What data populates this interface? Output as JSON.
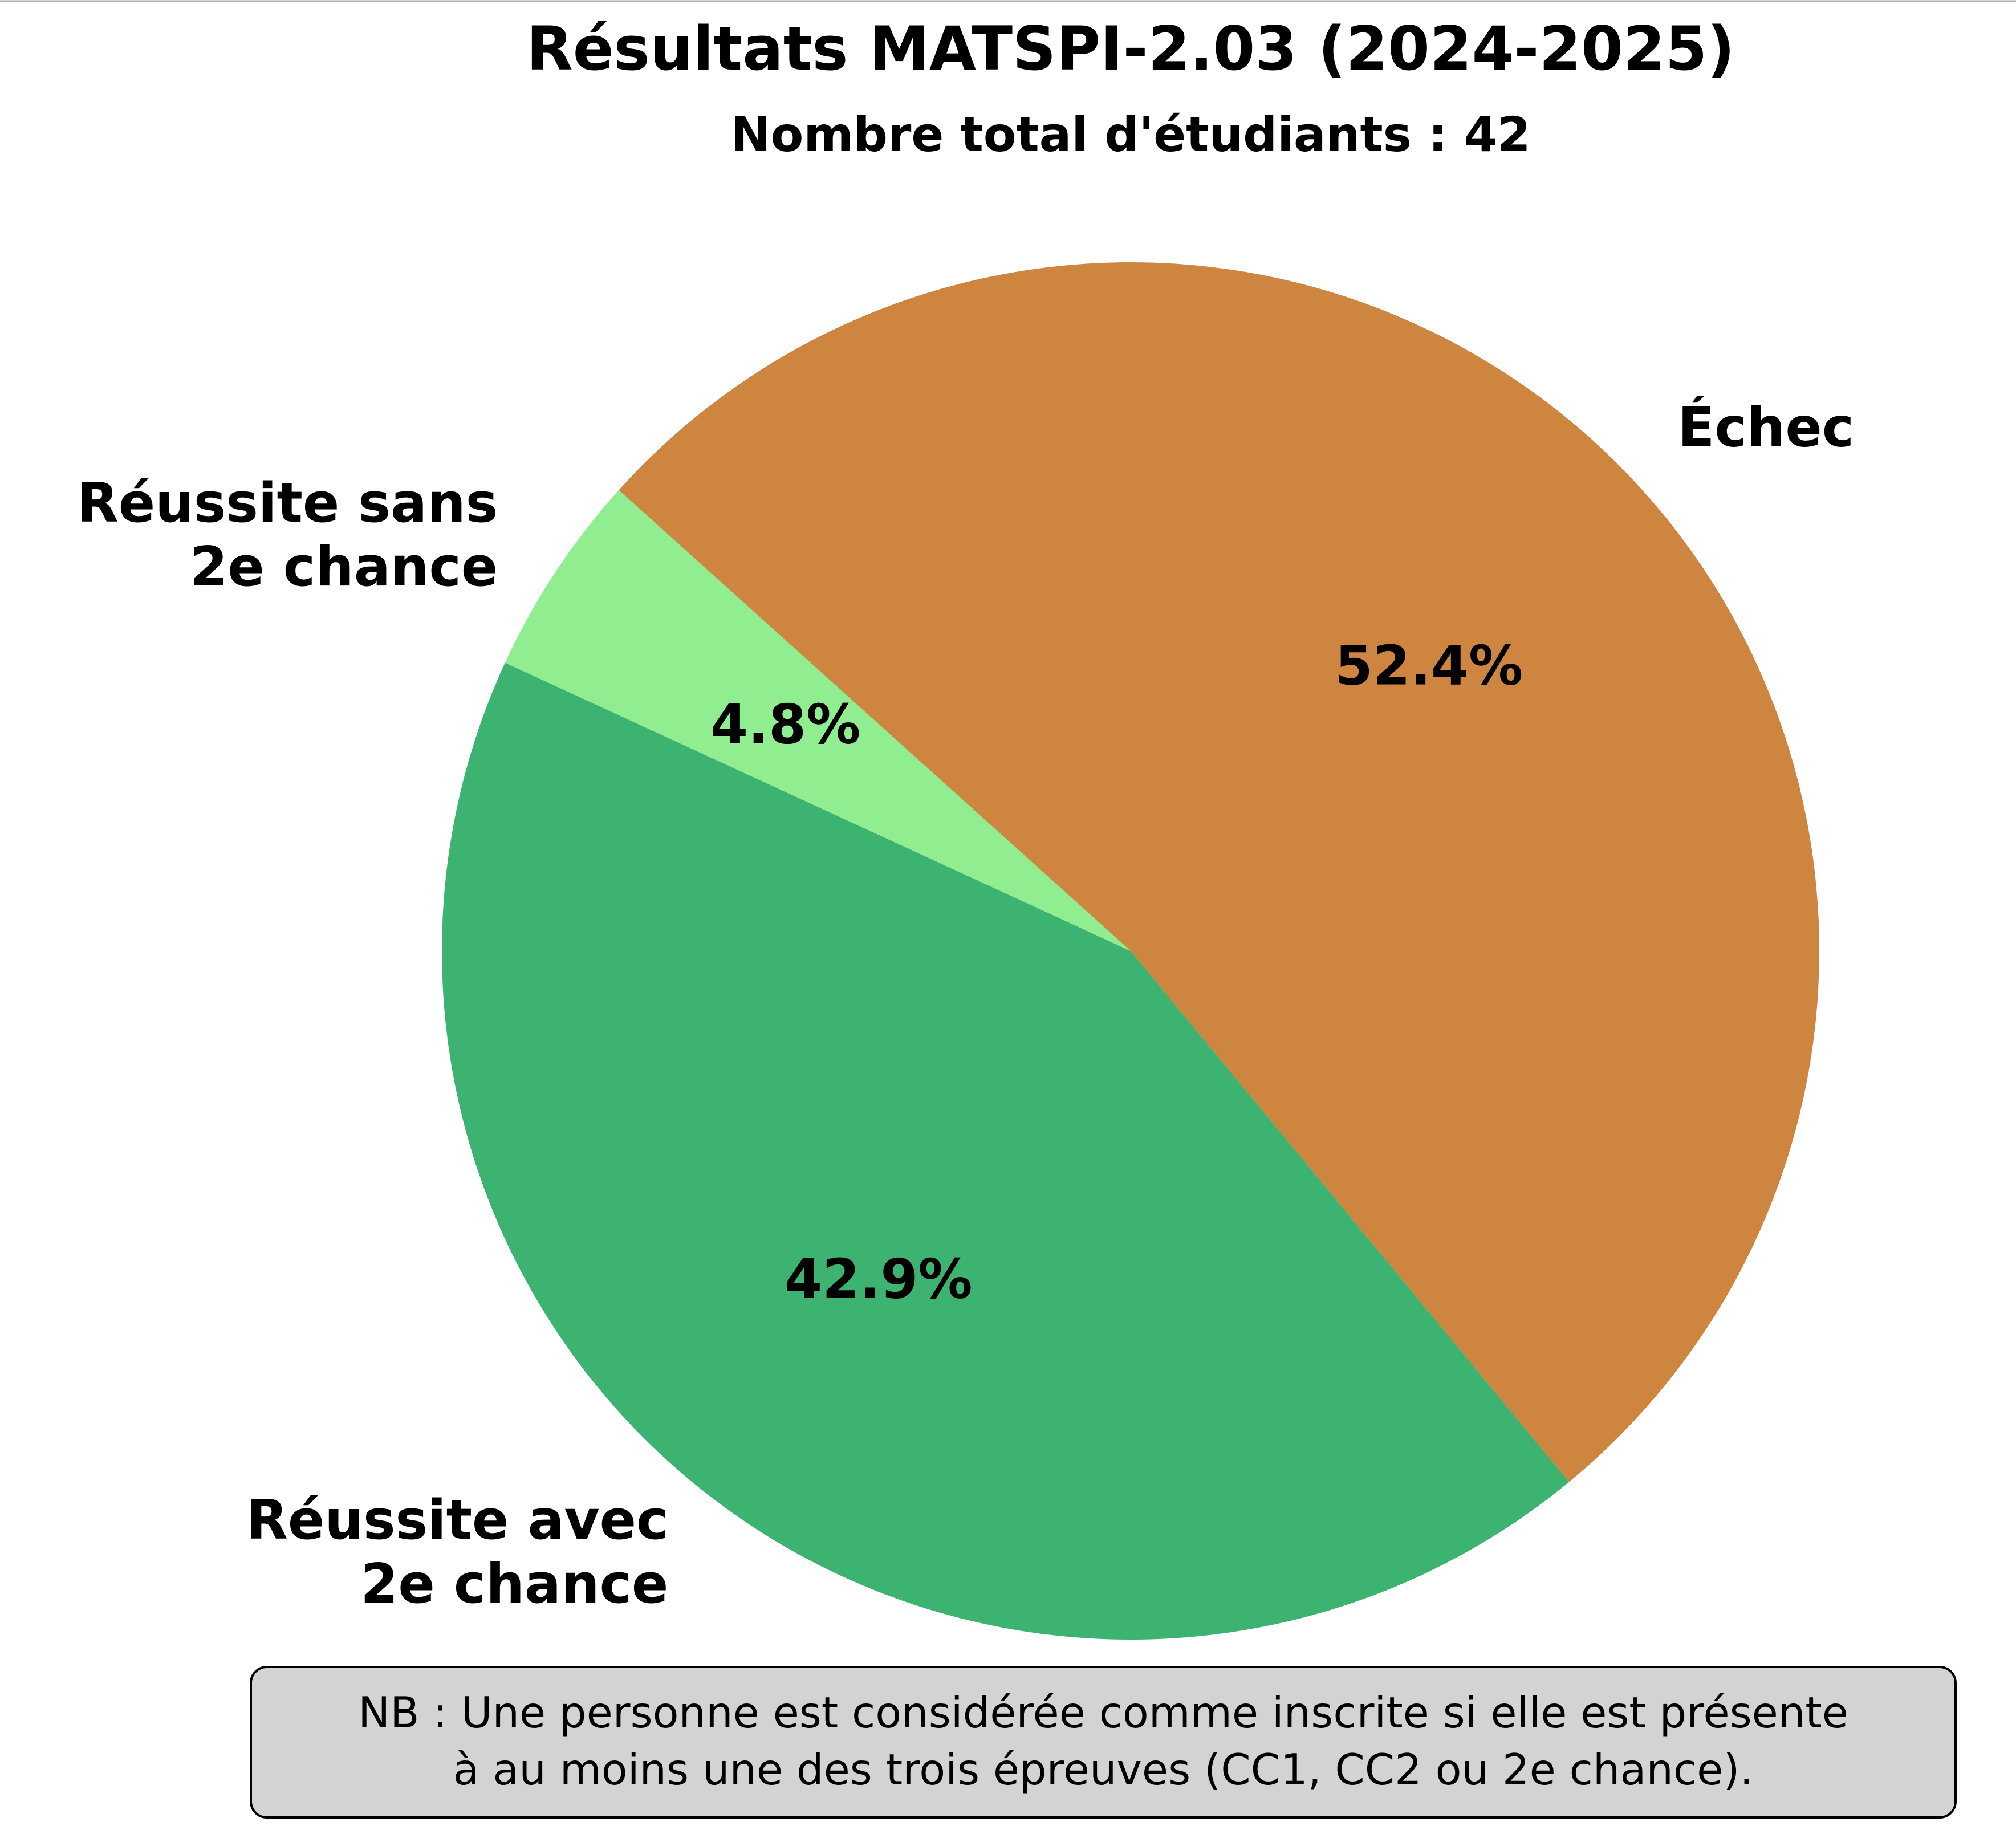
{
  "chart_data": {
    "type": "pie",
    "title": "Résultats MATSPI-2.03 (2024-2025)",
    "subtitle": "Nombre total d'étudiants : 42",
    "slices": [
      {
        "label_lines": [
          "Échec"
        ],
        "percent_label": "52.4%",
        "percent": 52.4,
        "color": "#cd853f"
      },
      {
        "label_lines": [
          "Réussite avec",
          "2e chance"
        ],
        "percent_label": "42.9%",
        "percent": 42.9,
        "color": "#3cb371"
      },
      {
        "label_lines": [
          "Réussite sans",
          "2e chance"
        ],
        "percent_label": "4.8%",
        "percent": 4.8,
        "color": "#90ee90"
      }
    ],
    "start_angle_deg": 138,
    "direction": "clockwise"
  },
  "note": {
    "lines": [
      "NB : Une personne est considérée comme inscrite si elle est présente",
      "à au moins une des trois épreuves (CC1, CC2 ou 2e chance)."
    ],
    "background": "#d3d3d3"
  }
}
